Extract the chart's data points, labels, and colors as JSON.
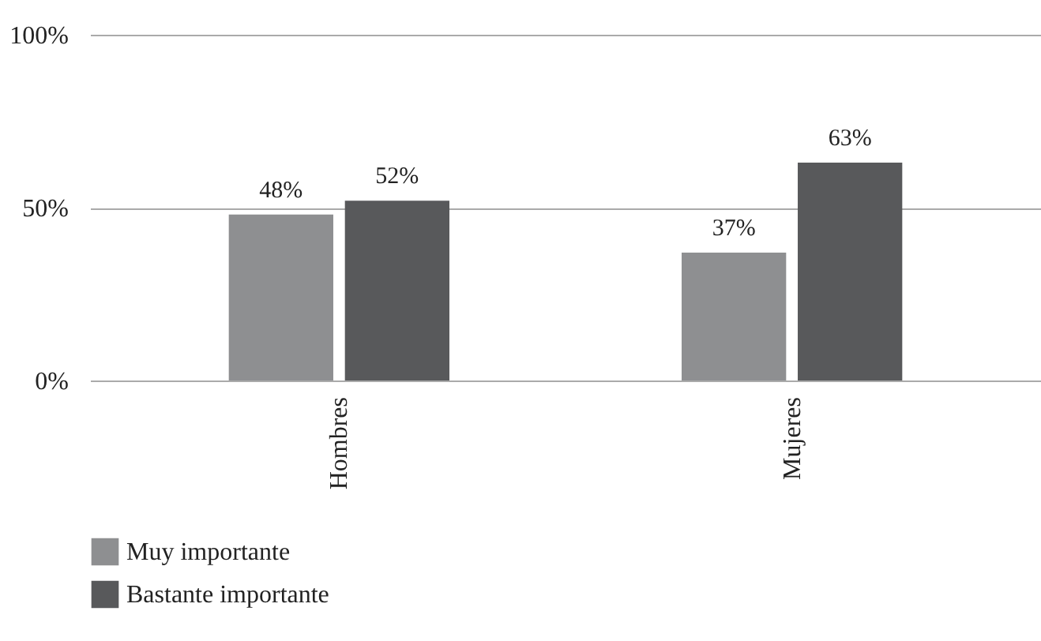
{
  "chart_data": {
    "type": "bar",
    "categories": [
      "Hombres",
      "Mujeres"
    ],
    "series": [
      {
        "name": "Muy importante",
        "color": "#8e8f91",
        "values": [
          48,
          37
        ],
        "value_labels": [
          "48%",
          "37%"
        ]
      },
      {
        "name": "Bastante importante",
        "color": "#58595b",
        "values": [
          52,
          63
        ],
        "value_labels": [
          "52%",
          "63%"
        ]
      }
    ],
    "ylim": [
      0,
      100
    ],
    "yticks": [
      {
        "value": 0,
        "label": "0%"
      },
      {
        "value": 50,
        "label": "50%"
      },
      {
        "value": 100,
        "label": "100%"
      }
    ],
    "grid": "y",
    "legend": "bottom"
  }
}
